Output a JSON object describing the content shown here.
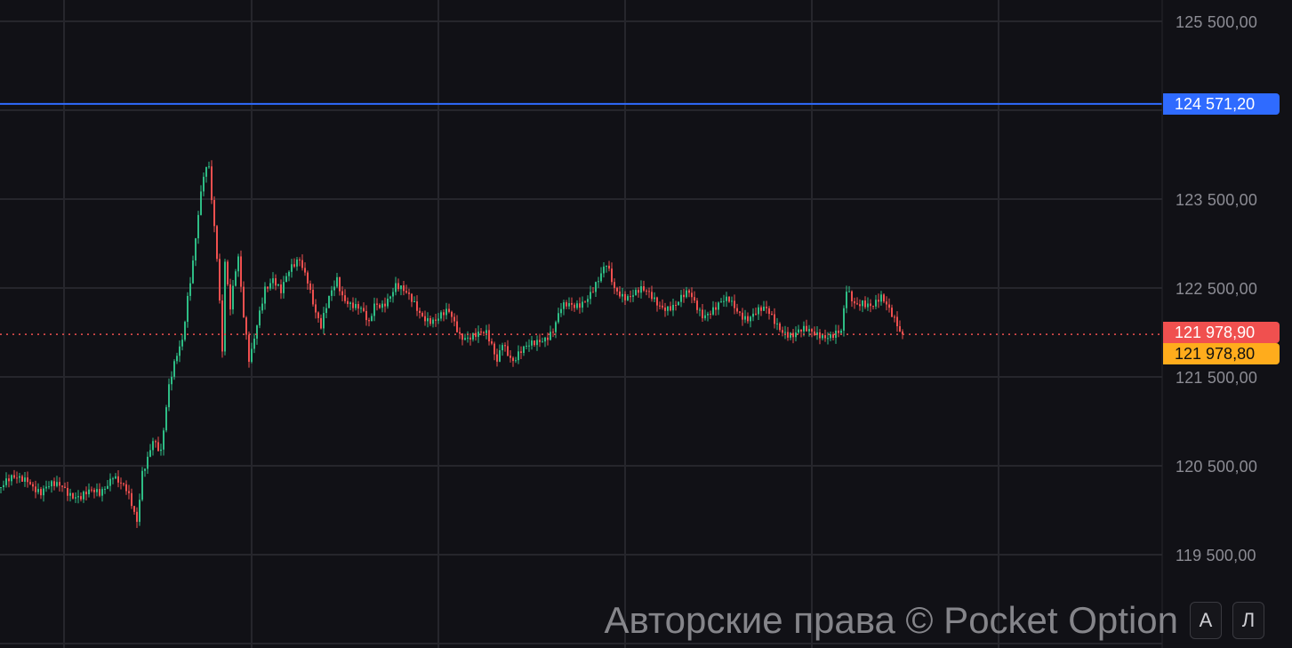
{
  "chart_data": {
    "type": "candlestick",
    "ylim": [
      119000,
      126000
    ],
    "y_ticks": [
      "125 500,00",
      "123 500,00",
      "122 500,00",
      "121 500,00",
      "120 500,00",
      "119 500,00"
    ],
    "y_tick_values": [
      125500,
      123500,
      122500,
      121500,
      120500,
      119500
    ],
    "grid": true,
    "close_path": [
      [
        0,
        120260
      ],
      [
        10,
        120390
      ],
      [
        15,
        120190
      ],
      [
        23,
        120290
      ],
      [
        30,
        120140
      ],
      [
        37,
        120190
      ],
      [
        42,
        120440
      ],
      [
        47,
        120190
      ],
      [
        51,
        119840
      ],
      [
        53,
        120440
      ],
      [
        57,
        120840
      ],
      [
        60,
        120640
      ],
      [
        63,
        121340
      ],
      [
        66,
        121740
      ],
      [
        68,
        121940
      ],
      [
        70,
        122440
      ],
      [
        72,
        122840
      ],
      [
        74,
        123340
      ],
      [
        76,
        123740
      ],
      [
        78,
        123820
      ],
      [
        79,
        123440
      ],
      [
        81,
        122840
      ],
      [
        83,
        121840
      ],
      [
        84,
        122840
      ],
      [
        86,
        122340
      ],
      [
        88,
        122740
      ],
      [
        89,
        122840
      ],
      [
        91,
        122140
      ],
      [
        93,
        121640
      ],
      [
        94,
        121740
      ],
      [
        97,
        122240
      ],
      [
        99,
        122540
      ],
      [
        102,
        122640
      ],
      [
        105,
        122440
      ],
      [
        108,
        122640
      ],
      [
        112,
        122840
      ],
      [
        115,
        122640
      ],
      [
        118,
        122240
      ],
      [
        120,
        122040
      ],
      [
        123,
        122340
      ],
      [
        126,
        122590
      ],
      [
        128,
        122440
      ],
      [
        132,
        122340
      ],
      [
        135,
        122240
      ],
      [
        138,
        122040
      ],
      [
        140,
        122290
      ],
      [
        143,
        122340
      ],
      [
        148,
        122540
      ],
      [
        152,
        122390
      ],
      [
        157,
        122240
      ],
      [
        163,
        122140
      ],
      [
        168,
        122190
      ],
      [
        172,
        121990
      ],
      [
        177,
        121990
      ],
      [
        182,
        121940
      ],
      [
        186,
        121690
      ],
      [
        188,
        121940
      ],
      [
        192,
        121690
      ],
      [
        197,
        121790
      ],
      [
        202,
        121940
      ],
      [
        207,
        122040
      ],
      [
        210,
        122240
      ],
      [
        215,
        122290
      ],
      [
        220,
        122440
      ],
      [
        224,
        122560
      ],
      [
        227,
        122720
      ],
      [
        230,
        122490
      ],
      [
        235,
        122440
      ],
      [
        240,
        122440
      ],
      [
        247,
        122340
      ],
      [
        253,
        122290
      ],
      [
        258,
        122420
      ],
      [
        263,
        122240
      ],
      [
        268,
        122260
      ],
      [
        273,
        122340
      ],
      [
        280,
        122190
      ],
      [
        287,
        122220
      ],
      [
        292,
        122090
      ],
      [
        297,
        121960
      ],
      [
        302,
        121990
      ],
      [
        307,
        122020
      ],
      [
        312,
        121960
      ],
      [
        315,
        121960
      ],
      [
        317,
        122440
      ],
      [
        320,
        122340
      ],
      [
        323,
        122390
      ],
      [
        327,
        122290
      ],
      [
        330,
        122340
      ],
      [
        333,
        122240
      ],
      [
        336,
        122140
      ],
      [
        338,
        121978.9
      ]
    ],
    "current_price": 121978.9,
    "current_price_label": "121 978,90",
    "ask_price_label": "121 978,80",
    "level_line": 124571.2,
    "level_line_label": "124 571,20",
    "colors": {
      "up": "#2ebd85",
      "down": "#f0504f",
      "level": "#2f6bff",
      "ask": "#ffac1c",
      "grid": "#26262c",
      "background": "#111116"
    }
  },
  "watermark": "Авторские права © Pocket Option",
  "buttons": {
    "auto_scale": "A",
    "second": "Л"
  }
}
